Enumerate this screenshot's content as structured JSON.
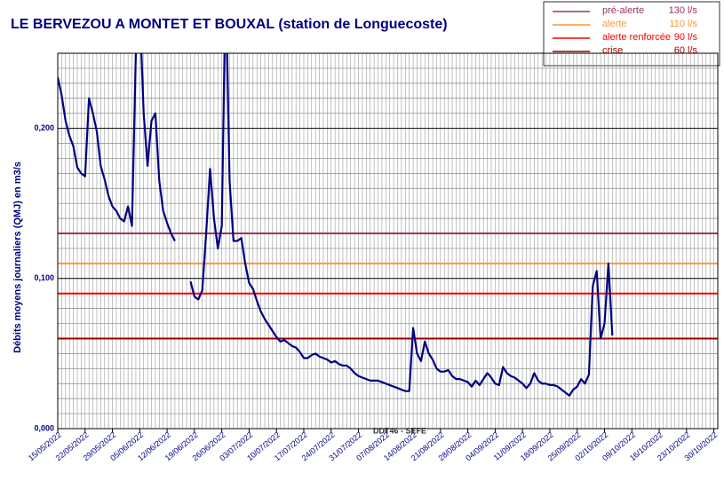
{
  "chart_data": {
    "type": "line",
    "title": "LE BERVEZOU A MONTET ET BOUXAL (station de Longuecoste)",
    "y_label": "Débits moyens journaliers (QMJ) en m3/s",
    "footer": "DDT46 - SEFE",
    "x": [
      "15/05/2022",
      "16/05/2022",
      "17/05/2022",
      "18/05/2022",
      "19/05/2022",
      "20/05/2022",
      "21/05/2022",
      "22/05/2022",
      "23/05/2022",
      "24/05/2022",
      "25/05/2022",
      "26/05/2022",
      "27/05/2022",
      "28/05/2022",
      "29/05/2022",
      "30/05/2022",
      "31/05/2022",
      "01/06/2022",
      "02/06/2022",
      "03/06/2022",
      "04/06/2022",
      "05/06/2022",
      "06/06/2022",
      "07/06/2022",
      "08/06/2022",
      "09/06/2022",
      "10/06/2022",
      "11/06/2022",
      "12/06/2022",
      "13/06/2022",
      "14/06/2022",
      "15/06/2022",
      "16/06/2022",
      "17/06/2022",
      "18/06/2022",
      "19/06/2022",
      "20/06/2022",
      "21/06/2022",
      "22/06/2022",
      "23/06/2022",
      "24/06/2022",
      "25/06/2022",
      "26/06/2022",
      "27/06/2022",
      "28/06/2022",
      "29/06/2022",
      "30/06/2022",
      "01/07/2022",
      "02/07/2022",
      "03/07/2022",
      "04/07/2022",
      "05/07/2022",
      "06/07/2022",
      "07/07/2022",
      "08/07/2022",
      "09/07/2022",
      "10/07/2022",
      "11/07/2022",
      "12/07/2022",
      "13/07/2022",
      "14/07/2022",
      "15/07/2022",
      "16/07/2022",
      "17/07/2022",
      "18/07/2022",
      "19/07/2022",
      "20/07/2022",
      "21/07/2022",
      "22/07/2022",
      "23/07/2022",
      "24/07/2022",
      "25/07/2022",
      "26/07/2022",
      "27/07/2022",
      "28/07/2022",
      "29/07/2022",
      "30/07/2022",
      "31/07/2022",
      "01/08/2022",
      "02/08/2022",
      "03/08/2022",
      "04/08/2022",
      "05/08/2022",
      "06/08/2022",
      "07/08/2022",
      "08/08/2022",
      "09/08/2022",
      "10/08/2022",
      "11/08/2022",
      "12/08/2022",
      "13/08/2022",
      "14/08/2022",
      "15/08/2022",
      "16/08/2022",
      "17/08/2022",
      "18/08/2022",
      "19/08/2022",
      "20/08/2022",
      "21/08/2022",
      "22/08/2022",
      "23/08/2022",
      "24/08/2022",
      "25/08/2022",
      "26/08/2022",
      "27/08/2022",
      "28/08/2022",
      "29/08/2022",
      "30/08/2022",
      "31/08/2022",
      "01/09/2022",
      "02/09/2022",
      "03/09/2022",
      "04/09/2022",
      "05/09/2022",
      "06/09/2022",
      "07/09/2022",
      "08/09/2022",
      "09/09/2022",
      "10/09/2022",
      "11/09/2022",
      "12/09/2022",
      "13/09/2022",
      "14/09/2022",
      "15/09/2022",
      "16/09/2022",
      "17/09/2022",
      "18/09/2022",
      "19/09/2022",
      "20/09/2022",
      "21/09/2022",
      "22/09/2022",
      "23/09/2022",
      "24/09/2022",
      "25/09/2022",
      "26/09/2022",
      "27/09/2022",
      "28/09/2022",
      "29/09/2022",
      "30/09/2022",
      "01/10/2022",
      "02/10/2022",
      "03/10/2022",
      "04/10/2022"
    ],
    "series": [
      {
        "color": "#000080",
        "values": [
          0.234,
          0.222,
          0.205,
          0.195,
          0.188,
          0.174,
          0.17,
          0.168,
          0.22,
          0.21,
          0.198,
          0.175,
          0.166,
          0.155,
          0.148,
          0.145,
          0.14,
          0.138,
          0.148,
          0.135,
          0.25,
          0.28,
          0.21,
          0.175,
          0.205,
          0.21,
          0.165,
          0.145,
          0.137,
          0.13,
          0.125,
          null,
          null,
          null,
          0.098,
          0.088,
          0.086,
          0.092,
          0.13,
          0.173,
          0.14,
          0.12,
          0.135,
          0.3,
          0.165,
          0.125,
          0.125,
          0.127,
          0.11,
          0.097,
          0.093,
          0.085,
          0.078,
          0.073,
          0.069,
          0.065,
          0.061,
          0.058,
          0.059,
          0.057,
          0.055,
          0.054,
          0.051,
          0.047,
          0.047,
          0.049,
          0.05,
          0.048,
          0.047,
          0.046,
          0.044,
          0.045,
          0.043,
          0.042,
          0.042,
          0.04,
          0.037,
          0.035,
          0.034,
          0.033,
          0.032,
          0.032,
          0.032,
          0.031,
          0.03,
          0.029,
          0.028,
          0.027,
          0.026,
          0.025,
          0.025,
          0.067,
          0.05,
          0.045,
          0.058,
          0.05,
          0.046,
          0.04,
          0.038,
          0.038,
          0.039,
          0.035,
          0.033,
          0.033,
          0.032,
          0.031,
          0.028,
          0.032,
          0.029,
          0.033,
          0.037,
          0.034,
          0.03,
          0.029,
          0.041,
          0.037,
          0.035,
          0.034,
          0.032,
          0.03,
          0.027,
          0.03,
          0.037,
          0.032,
          0.03,
          0.03,
          0.029,
          0.029,
          0.028,
          0.026,
          0.024,
          0.022,
          0.026,
          0.028,
          0.033,
          0.03,
          0.036,
          0.095,
          0.105,
          0.06,
          0.07,
          0.11,
          0.062
        ]
      }
    ],
    "thresholds": [
      {
        "name": "pré-alerte",
        "label": "130 l/s",
        "value": 0.13,
        "color": "#993366"
      },
      {
        "name": "alerte",
        "label": "110 l/s",
        "value": 0.11,
        "color": "#ff9933"
      },
      {
        "name": "alerte renforcée",
        "label": "90 l/s",
        "value": 0.09,
        "color": "#ff0000"
      },
      {
        "name": "crise",
        "label": "60 l/s",
        "value": 0.06,
        "color": "#990000"
      }
    ],
    "xlim": [
      "15/05/2022",
      "31/10/2022"
    ],
    "xticks": [
      "15/05/2022",
      "22/05/2022",
      "29/05/2022",
      "05/06/2022",
      "12/06/2022",
      "19/06/2022",
      "26/06/2022",
      "03/07/2022",
      "10/07/2022",
      "17/07/2022",
      "24/07/2022",
      "31/07/2022",
      "07/08/2022",
      "14/08/2022",
      "21/08/2022",
      "28/08/2022",
      "04/09/2022",
      "11/09/2022",
      "18/09/2022",
      "25/09/2022",
      "02/10/2022",
      "09/10/2022",
      "16/10/2022",
      "23/10/2022",
      "30/10/2022"
    ],
    "ylim": [
      0,
      0.25
    ],
    "yticks": [
      {
        "value": 0,
        "label": "0,000"
      },
      {
        "value": 0.1,
        "label": "0,100"
      },
      {
        "value": 0.2,
        "label": "0,200"
      }
    ],
    "y_minor_ticks": [
      0.01,
      0.02,
      0.03,
      0.04,
      0.05,
      0.06,
      0.07,
      0.08,
      0.09,
      0.11,
      0.12,
      0.13,
      0.14,
      0.15,
      0.16,
      0.17,
      0.18,
      0.19,
      0.21,
      0.22,
      0.23,
      0.24,
      0.25
    ],
    "grid": true
  }
}
